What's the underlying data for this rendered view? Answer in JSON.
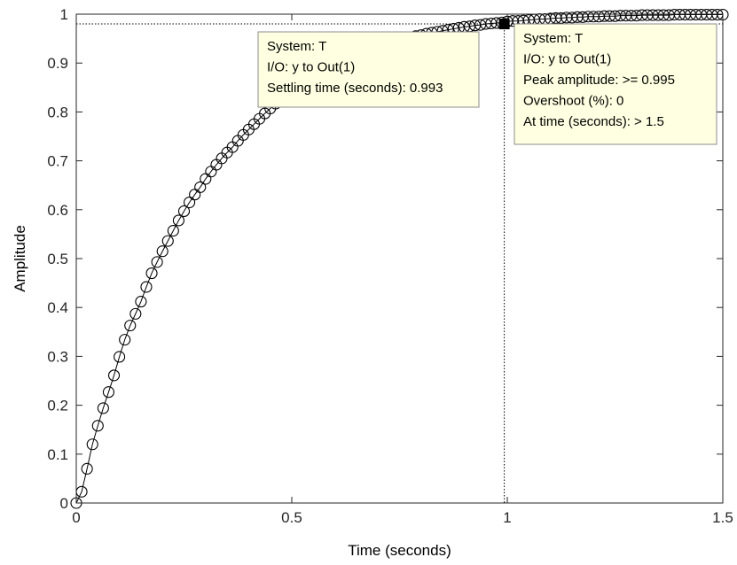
{
  "colors": {
    "line": "#000000",
    "marker_edge": "#000000",
    "tooltip_bg": "#ffffe1",
    "tooltip_border": "#8c8c8c",
    "axes": "#262626"
  },
  "chart_data": {
    "type": "line",
    "title": "",
    "xlabel": "Time (seconds)",
    "ylabel": "Amplitude",
    "xlim": [
      0,
      1.5
    ],
    "ylim": [
      0,
      1
    ],
    "xticks": [
      0,
      0.5,
      1,
      1.5
    ],
    "xtick_labels": [
      "0",
      "0.5",
      "1",
      "1.5"
    ],
    "yticks": [
      0,
      0.1,
      0.2,
      0.3,
      0.4,
      0.5,
      0.6,
      0.7,
      0.8,
      0.9,
      1
    ],
    "ytick_labels": [
      "0",
      "0.1",
      "0.2",
      "0.3",
      "0.4",
      "0.5",
      "0.6",
      "0.7",
      "0.8",
      "0.9",
      "1"
    ],
    "grid": false,
    "legend": "none",
    "marker": "open-circle",
    "series": [
      {
        "x": [
          0,
          0.0125,
          0.025,
          0.0375,
          0.05,
          0.0625,
          0.075,
          0.0875,
          0.1,
          0.1125,
          0.125,
          0.1375,
          0.15,
          0.1625,
          0.175,
          0.1875,
          0.2,
          0.2125,
          0.225,
          0.2375,
          0.25,
          0.2625,
          0.275,
          0.2875,
          0.3,
          0.3125,
          0.325,
          0.3375,
          0.35,
          0.3625,
          0.375,
          0.3875,
          0.4,
          0.4125,
          0.425,
          0.4375,
          0.45,
          0.4625,
          0.475,
          0.4875,
          0.5,
          0.5125,
          0.525,
          0.5375,
          0.55,
          0.5625,
          0.575,
          0.5875,
          0.6,
          0.6125,
          0.625,
          0.6375,
          0.65,
          0.6625,
          0.675,
          0.6875,
          0.7,
          0.7125,
          0.725,
          0.7375,
          0.75,
          0.7625,
          0.775,
          0.7875,
          0.8,
          0.8125,
          0.825,
          0.8375,
          0.85,
          0.8625,
          0.875,
          0.8875,
          0.9,
          0.9125,
          0.925,
          0.9375,
          0.95,
          0.9625,
          0.975,
          0.9875,
          1,
          1.0125,
          1.025,
          1.0375,
          1.05,
          1.0625,
          1.075,
          1.0875,
          1.1,
          1.1125,
          1.125,
          1.1375,
          1.15,
          1.1625,
          1.175,
          1.1875,
          1.2,
          1.2125,
          1.225,
          1.2375,
          1.25,
          1.2625,
          1.275,
          1.2875,
          1.3,
          1.3125,
          1.325,
          1.3375,
          1.35,
          1.3625,
          1.375,
          1.3875,
          1.4,
          1.4125,
          1.425,
          1.4375,
          1.45,
          1.4625,
          1.475,
          1.4875,
          1.5
        ],
        "y": [
          0,
          0.023,
          0.07,
          0.12,
          0.158,
          0.194,
          0.227,
          0.261,
          0.299,
          0.334,
          0.363,
          0.387,
          0.412,
          0.442,
          0.47,
          0.493,
          0.515,
          0.536,
          0.557,
          0.578,
          0.597,
          0.615,
          0.631,
          0.646,
          0.663,
          0.678,
          0.692,
          0.705,
          0.717,
          0.728,
          0.741,
          0.753,
          0.764,
          0.775,
          0.786,
          0.797,
          0.807,
          0.817,
          0.826,
          0.835,
          0.843,
          0.851,
          0.858,
          0.866,
          0.873,
          0.879,
          0.886,
          0.891,
          0.897,
          0.902,
          0.907,
          0.912,
          0.917,
          0.921,
          0.925,
          0.929,
          0.933,
          0.937,
          0.94,
          0.943,
          0.946,
          0.949,
          0.952,
          0.955,
          0.957,
          0.96,
          0.962,
          0.964,
          0.966,
          0.968,
          0.97,
          0.972,
          0.974,
          0.975,
          0.977,
          0.978,
          0.98,
          0.981,
          0.982,
          0.983,
          0.985,
          0.986,
          0.986,
          0.987,
          0.988,
          0.989,
          0.99,
          0.99,
          0.991,
          0.992,
          0.992,
          0.993,
          0.993,
          0.994,
          0.994,
          0.995,
          0.995,
          0.995,
          0.996,
          0.996,
          0.996,
          0.997,
          0.997,
          0.997,
          0.997,
          0.998,
          0.998,
          0.998,
          0.998,
          0.998,
          0.998,
          0.999,
          0.999,
          0.999,
          0.999,
          0.999,
          0.999,
          0.999,
          0.999,
          0.999,
          0.999
        ]
      }
    ],
    "reference_lines": {
      "settling_time": 0.993,
      "settling_level": 0.98,
      "settling_marker": [
        0.993,
        0.98
      ]
    },
    "annotations": [
      {
        "lines": [
          "System: T",
          "I/O: y to Out(1)",
          "Settling time (seconds): 0.993"
        ]
      },
      {
        "lines": [
          "System: T",
          "I/O: y to Out(1)",
          "Peak amplitude: >= 0.995",
          "Overshoot (%): 0",
          "At time (seconds): > 1.5"
        ]
      }
    ]
  }
}
